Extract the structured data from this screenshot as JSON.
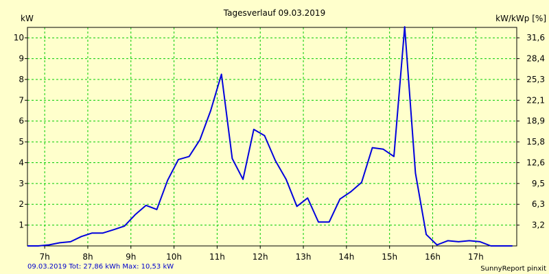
{
  "chart_data": {
    "type": "line",
    "title": "Tagesverlauf 09.03.2019",
    "ylabel_left": "kW",
    "ylabel_right": "kW/kWp [%]",
    "x_unit": "h",
    "xlim": [
      6.6,
      17.95
    ],
    "ylim": [
      0,
      10.5
    ],
    "x_ticks": [
      7,
      8,
      9,
      10,
      11,
      12,
      13,
      14,
      15,
      16,
      17
    ],
    "x_tick_labels": [
      "7h",
      "8h",
      "9h",
      "10h",
      "11h",
      "12h",
      "13h",
      "14h",
      "15h",
      "16h",
      "17h"
    ],
    "y_ticks_left": [
      1,
      2,
      3,
      4,
      5,
      6,
      7,
      8,
      9,
      10
    ],
    "y_tick_labels_left": [
      "1",
      "2",
      "3",
      "4",
      "5",
      "6",
      "7",
      "8",
      "9",
      "10"
    ],
    "y_tick_labels_right": [
      "3,2",
      "6,3",
      "9,5",
      "12,6",
      "15,8",
      "18,9",
      "22,1",
      "25,3",
      "28,4",
      "31,6"
    ],
    "grid": true,
    "series": [
      {
        "x": [
          6.6,
          6.85,
          7.1,
          7.35,
          7.6,
          7.85,
          8.1,
          8.35,
          8.6,
          8.85,
          9.1,
          9.35,
          9.6,
          9.85,
          10.1,
          10.35,
          10.6,
          10.85,
          11.1,
          11.35,
          11.6,
          11.85,
          12.1,
          12.35,
          12.6,
          12.85,
          13.1,
          13.35,
          13.6,
          13.85,
          14.1,
          14.35,
          14.6,
          14.85,
          15.1,
          15.35,
          15.6,
          15.85,
          16.1,
          16.35,
          16.6,
          16.85,
          17.1,
          17.35,
          17.6,
          17.85
        ],
        "values": [
          0.0,
          0.0,
          0.05,
          0.15,
          0.2,
          0.45,
          0.62,
          0.62,
          0.78,
          0.95,
          1.5,
          1.95,
          1.75,
          3.15,
          4.15,
          4.3,
          5.1,
          6.5,
          8.25,
          4.2,
          3.2,
          5.6,
          5.3,
          4.1,
          3.2,
          1.9,
          2.3,
          1.15,
          1.15,
          2.25,
          2.6,
          3.05,
          4.72,
          4.65,
          4.3,
          10.53,
          3.5,
          0.55,
          0.05,
          0.25,
          0.2,
          0.25,
          0.2,
          0.0,
          0.0,
          0.0
        ],
        "color": "#0000dd"
      }
    ]
  },
  "footer": {
    "summary": "09.03.2019 Tot: 27,86 kWh Max: 10,53 kW",
    "brand": "SunnyReport pinxit"
  },
  "colors": {
    "background": "#ffffcc",
    "grid": "#00cc00",
    "line": "#0000dd",
    "footer_text": "#0000cc"
  }
}
